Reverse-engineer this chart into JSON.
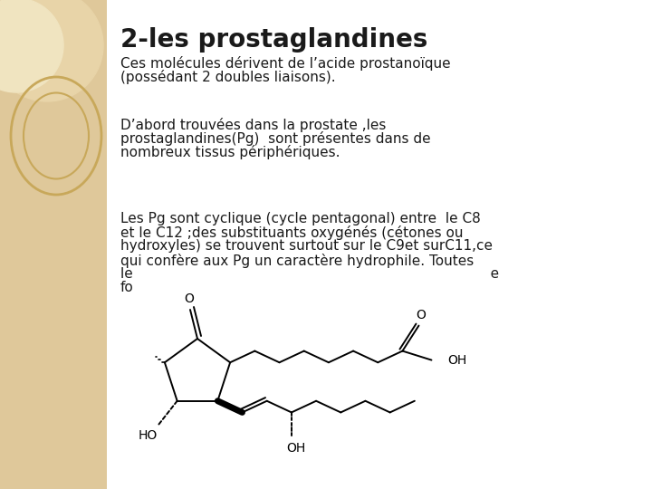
{
  "title": "2-les prostaglandines",
  "para1": "Ces molécules dérivent de l’acide prostanoïque\n(possédant 2 doubles liaisons).",
  "para2": "D’abord trouvées dans la prostate ,les\nprostaglandines(Pg)  sont présentes dans de\nnombreux tissus périphériques.",
  "para3_line1": "Les Pg sont cyclique (cycle pentagonal) entre  le C8",
  "para3_line2": "et le C12 ;des substituants oxygénés (cétones ou",
  "para3_line3": "hydroxyles) se trouvent surtout sur le C9et surC11,ce",
  "para3_line4": "qui confère aux Pg un caractère hydrophile. Toutes",
  "para3_line5": "le                                                                                 e",
  "para3_line6": "fo",
  "left_panel_color": "#dfc89a",
  "bg_color": "#ffffff",
  "title_fontsize": 20,
  "body_fontsize": 11,
  "text_color": "#1a1a1a"
}
